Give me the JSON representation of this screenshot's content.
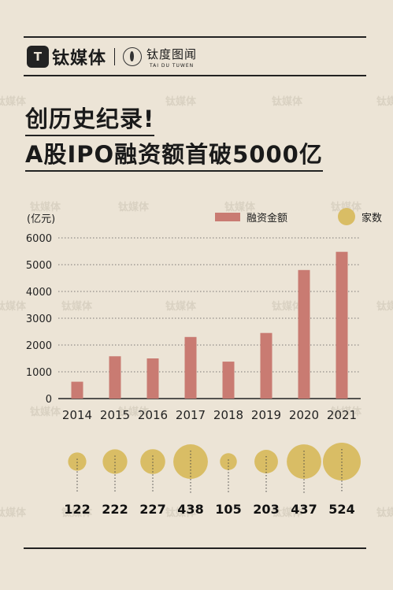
{
  "brand": {
    "logo": "T",
    "name": "钛媒体",
    "sub_cn": "钛度图闻",
    "sub_en": "TAI DU TUWEN"
  },
  "title": {
    "line1": "创历史纪录!",
    "line2": "A股IPO融资额首破5000亿"
  },
  "watermark": "钛媒体",
  "colors": {
    "bar": "#c97b72",
    "bubble": "#d9bd65",
    "background": "#ece4d6"
  },
  "chart_data": {
    "type": "bar",
    "ylabel": "(亿元)",
    "ylim": [
      0,
      6000
    ],
    "yticks": [
      0,
      1000,
      2000,
      3000,
      4000,
      5000,
      6000
    ],
    "grid": true,
    "legend_position": "top-right",
    "categories": [
      "2014",
      "2015",
      "2016",
      "2017",
      "2018",
      "2019",
      "2020",
      "2021"
    ],
    "series": [
      {
        "name": "融资金额",
        "type": "bar",
        "values": [
          630,
          1580,
          1500,
          2300,
          1380,
          2450,
          4800,
          5480
        ]
      },
      {
        "name": "家数",
        "type": "bubble",
        "values": [
          122,
          222,
          227,
          438,
          105,
          203,
          437,
          524
        ]
      }
    ]
  }
}
